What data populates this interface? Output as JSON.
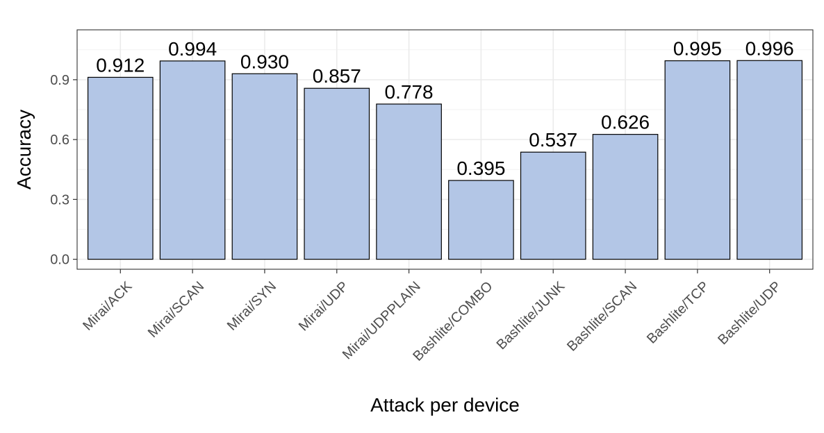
{
  "chart_data": {
    "type": "bar",
    "title": "",
    "xlabel": "Attack per device",
    "ylabel": "Accuracy",
    "categories": [
      "Mirai/ACK",
      "Mirai/SCAN",
      "Mirai/SYN",
      "Mirai/UDP",
      "Mirai/UDPPLAIN",
      "Bashlite/COMBO",
      "Bashlite/JUNK",
      "Bashlite/SCAN",
      "Bashlite/TCP",
      "Bashlite/UDP"
    ],
    "values": [
      0.912,
      0.994,
      0.93,
      0.857,
      0.778,
      0.395,
      0.537,
      0.626,
      0.995,
      0.996
    ],
    "value_labels": [
      "0.912",
      "0.994",
      "0.930",
      "0.857",
      "0.778",
      "0.395",
      "0.537",
      "0.626",
      "0.995",
      "0.996"
    ],
    "yticks": [
      0,
      0.3,
      0.6,
      0.9
    ],
    "ytick_labels": [
      "0.0",
      "0.3",
      "0.6",
      "0.9"
    ],
    "ylim": [
      -0.05,
      1.15
    ],
    "grid": true,
    "legend": "none",
    "bar_color": "#b3c6e6",
    "bar_border_color": "#000000"
  }
}
